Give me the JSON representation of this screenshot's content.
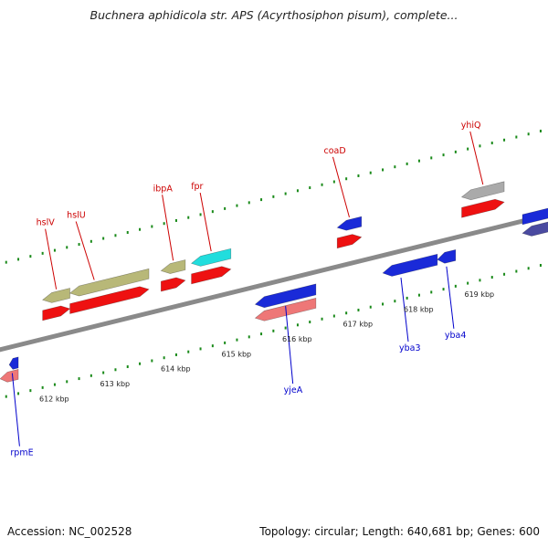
{
  "title": "Buchnera aphidicola str. APS (Acyrthosiphon pisum), complete...",
  "footer": {
    "accession": "Accession: NC_002528",
    "summary": "Topology: circular; Length: 640,681 bp; Genes: 600"
  },
  "ruler_ticks": [
    {
      "label": "612 kbp",
      "pos": 612
    },
    {
      "label": "613 kbp",
      "pos": 613
    },
    {
      "label": "614 kbp",
      "pos": 614
    },
    {
      "label": "615 kbp",
      "pos": 615
    },
    {
      "label": "616 kbp",
      "pos": 616
    },
    {
      "label": "617 kbp",
      "pos": 617
    },
    {
      "label": "618 kbp",
      "pos": 618
    },
    {
      "label": "619 kbp",
      "pos": 619
    }
  ],
  "forward_genes": [
    {
      "name": "hslV",
      "start": 612.1,
      "end": 612.55,
      "color": "#b8b878",
      "label_color": "#cc0000"
    },
    {
      "name": "hslU",
      "start": 612.55,
      "end": 613.85,
      "color": "#b8b878",
      "label_color": "#cc0000"
    },
    {
      "name": "ibpA",
      "start": 614.05,
      "end": 614.45,
      "color": "#b8b878",
      "label_color": "#cc0000"
    },
    {
      "name": "fpr",
      "start": 614.55,
      "end": 615.2,
      "color": "#22dddd",
      "label_color": "#cc0000"
    },
    {
      "name": "coaD",
      "start": 616.95,
      "end": 617.35,
      "color": "#1a2ad8",
      "label_color": "#cc0000"
    },
    {
      "name": "yhiQ",
      "start": 619.0,
      "end": 619.7,
      "color": "#aaaaaa",
      "label_color": "#cc0000"
    }
  ],
  "reverse_genes": [
    {
      "name": "rpmE",
      "start": 611.55,
      "end": 611.7,
      "color": "#1a2ad8",
      "label_color": "#0000cc"
    },
    {
      "name": "yjeA",
      "start": 615.6,
      "end": 616.6,
      "color": "#1a2ad8",
      "label_color": "#0000cc"
    },
    {
      "name": "yba3",
      "start": 617.7,
      "end": 618.6,
      "color": "#1a2ad8",
      "label_color": "#0000cc"
    },
    {
      "name": "yba4",
      "start": 618.6,
      "end": 618.9,
      "color": "#1a2ad8",
      "label_color": "#0000cc"
    }
  ],
  "colors": {
    "backbone": "#8a8a8a",
    "ruler": "#1a8a1a",
    "cds_track": "#ee1111",
    "reverse_cds_track": "#ee7777",
    "slate_gene": "#4a4aa0"
  }
}
